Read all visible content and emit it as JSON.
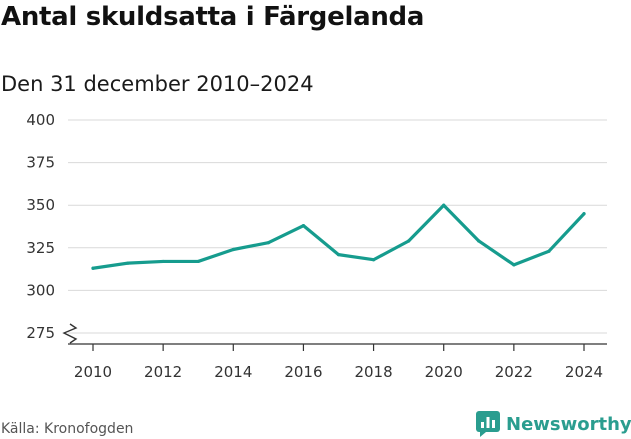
{
  "title": "Antal skuldsatta i Färgelanda",
  "subtitle": "Den 31 december 2010–2024",
  "source": "Källa: Kronofogden",
  "brand": {
    "name": "Newsworthy",
    "icon": "newsworthy-logo-icon",
    "color": "#2a9d8f"
  },
  "chart_data": {
    "type": "line",
    "title": "Antal skuldsatta i Färgelanda",
    "subtitle": "Den 31 december 2010–2024",
    "xlabel": "",
    "ylabel": "",
    "x": [
      2010,
      2011,
      2012,
      2013,
      2014,
      2015,
      2016,
      2017,
      2018,
      2019,
      2020,
      2021,
      2022,
      2023,
      2024
    ],
    "series": [
      {
        "name": "Antal skuldsatta",
        "color": "#169c8e",
        "values": [
          313,
          316,
          317,
          317,
          324,
          328,
          338,
          321,
          318,
          329,
          350,
          329,
          315,
          323,
          345
        ]
      }
    ],
    "ylim": [
      275,
      400
    ],
    "yticks": [
      "400",
      "375",
      "350",
      "325",
      "300",
      "275"
    ],
    "xticks": [
      "2010",
      "2012",
      "2014",
      "2016",
      "2018",
      "2020",
      "2022",
      "2024"
    ],
    "axis_break": true,
    "grid": true
  }
}
